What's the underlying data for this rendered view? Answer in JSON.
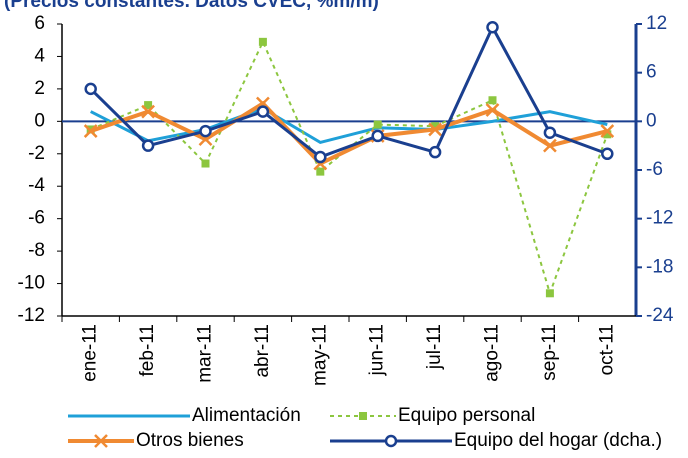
{
  "chart_data": {
    "type": "line",
    "title": "(Precios constantes. Datos CVEC, %m/m)",
    "categories": [
      "ene-11",
      "feb-11",
      "mar-11",
      "abr-11",
      "may-11",
      "jun-11",
      "jul-11",
      "ago-11",
      "sep-11",
      "oct-11"
    ],
    "series": [
      {
        "name": "Alimentación",
        "color": "#1fa0d8",
        "marker": "none",
        "dash": false,
        "width": 3,
        "values": [
          0.6,
          -1.2,
          -0.5,
          0.8,
          -1.3,
          -0.4,
          -0.5,
          0,
          0.6,
          -0.2
        ]
      },
      {
        "name": "Equipo personal",
        "color": "#8cc63f",
        "marker": "square",
        "dash": true,
        "width": 2,
        "values": [
          -0.5,
          1.0,
          -2.6,
          4.9,
          -3.1,
          -0.2,
          -0.3,
          1.3,
          -10.6,
          -0.8
        ]
      },
      {
        "name": "Otros bienes",
        "color": "#f08a32",
        "marker": "x",
        "dash": false,
        "width": 4,
        "values": [
          -0.6,
          0.6,
          -1.1,
          1.1,
          -2.6,
          -0.9,
          -0.5,
          0.7,
          -1.5,
          -0.6
        ]
      },
      {
        "name": "Equipo del hogar (dcha.)",
        "color": "#1a3f8f",
        "marker": "circle",
        "dash": false,
        "width": 3,
        "axis": "y2",
        "values": [
          4.0,
          -3.0,
          -1.2,
          1.2,
          -4.4,
          -1.8,
          -3.8,
          11.6,
          -1.4,
          -4.0
        ]
      }
    ],
    "ylim": [
      -12,
      6
    ],
    "yticks": [
      -12,
      -10,
      -8,
      -6,
      -4,
      -2,
      0,
      2,
      4,
      6
    ],
    "y2lim": [
      -24,
      12
    ],
    "y2ticks": [
      -24,
      -18,
      -12,
      -6,
      0,
      6,
      12
    ],
    "grid": false
  }
}
